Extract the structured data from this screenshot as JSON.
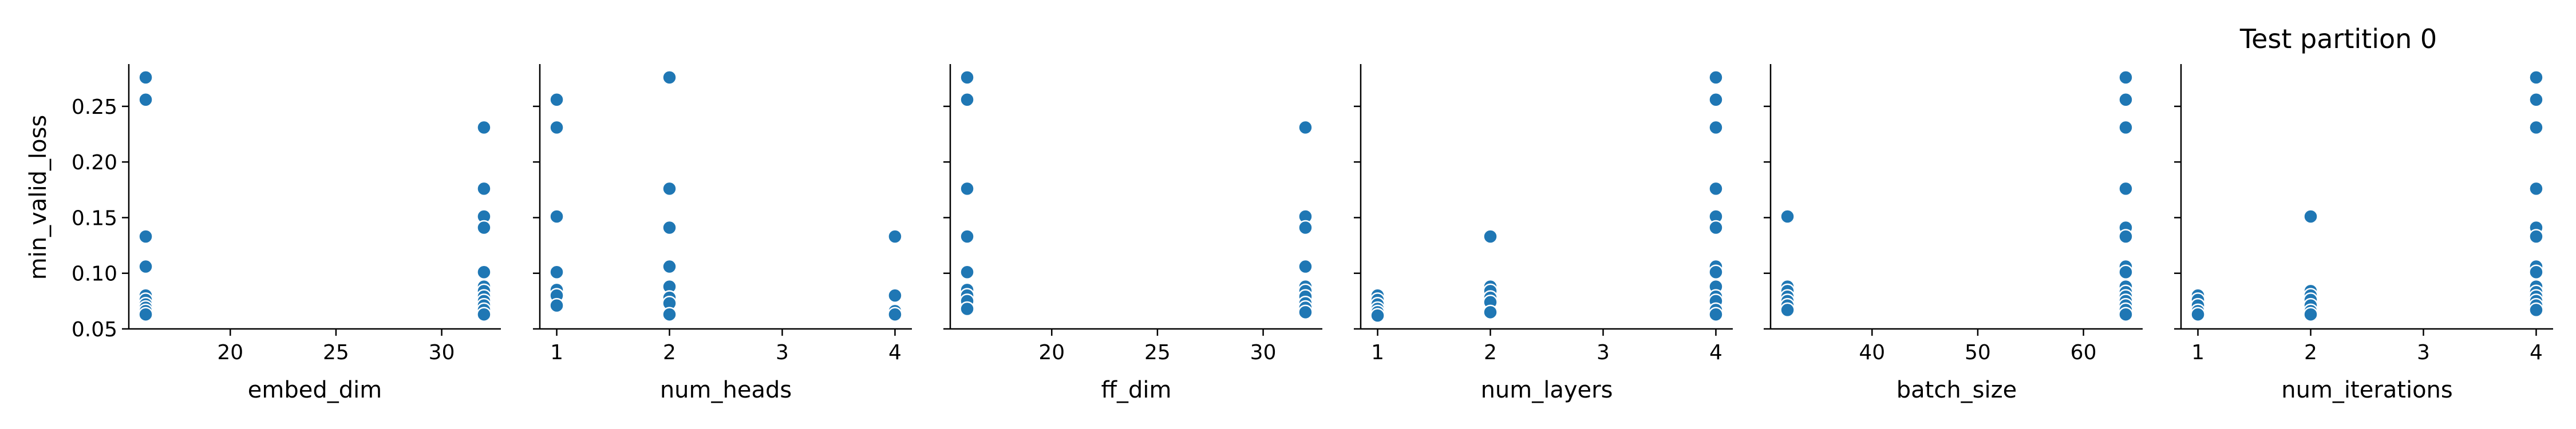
{
  "title": "Test partition 0",
  "ylabel": "min_valid_loss",
  "colors": {
    "point": "#1f77b4",
    "point_edge": "#ffffff",
    "axis": "#000000"
  },
  "chart_data": [
    {
      "type": "scatter",
      "xlabel": "embed_dim",
      "ylabel": "min_valid_loss",
      "xticks": [
        20,
        25,
        30
      ],
      "xlim": [
        15.2,
        32.8
      ],
      "yticks": [
        0.05,
        0.1,
        0.15,
        0.2,
        0.25
      ],
      "ylim": [
        0.05,
        0.288
      ],
      "points": [
        [
          16,
          0.276
        ],
        [
          16,
          0.256
        ],
        [
          16,
          0.133
        ],
        [
          16,
          0.106
        ],
        [
          16,
          0.08
        ],
        [
          16,
          0.076
        ],
        [
          16,
          0.072
        ],
        [
          16,
          0.069
        ],
        [
          16,
          0.066
        ],
        [
          16,
          0.063
        ],
        [
          32,
          0.231
        ],
        [
          32,
          0.176
        ],
        [
          32,
          0.151
        ],
        [
          32,
          0.141
        ],
        [
          32,
          0.101
        ],
        [
          32,
          0.088
        ],
        [
          32,
          0.084
        ],
        [
          32,
          0.079
        ],
        [
          32,
          0.075
        ],
        [
          32,
          0.071
        ],
        [
          32,
          0.067
        ],
        [
          32,
          0.063
        ]
      ]
    },
    {
      "type": "scatter",
      "xlabel": "num_heads",
      "ylabel": "",
      "xticks": [
        1,
        2,
        3,
        4
      ],
      "xlim": [
        0.85,
        4.15
      ],
      "yticks": [
        0.05,
        0.1,
        0.15,
        0.2,
        0.25
      ],
      "ylim": [
        0.05,
        0.288
      ],
      "points": [
        [
          1,
          0.256
        ],
        [
          1,
          0.231
        ],
        [
          1,
          0.151
        ],
        [
          1,
          0.101
        ],
        [
          1,
          0.085
        ],
        [
          1,
          0.08
        ],
        [
          1,
          0.071
        ],
        [
          2,
          0.276
        ],
        [
          2,
          0.176
        ],
        [
          2,
          0.141
        ],
        [
          2,
          0.106
        ],
        [
          2,
          0.088
        ],
        [
          2,
          0.078
        ],
        [
          2,
          0.073
        ],
        [
          2,
          0.063
        ],
        [
          4,
          0.133
        ],
        [
          4,
          0.08
        ],
        [
          4,
          0.066
        ],
        [
          4,
          0.063
        ]
      ]
    },
    {
      "type": "scatter",
      "xlabel": "ff_dim",
      "ylabel": "",
      "xticks": [
        20,
        25,
        30
      ],
      "xlim": [
        15.2,
        32.8
      ],
      "yticks": [
        0.05,
        0.1,
        0.15,
        0.2,
        0.25
      ],
      "ylim": [
        0.05,
        0.288
      ],
      "points": [
        [
          16,
          0.276
        ],
        [
          16,
          0.256
        ],
        [
          16,
          0.176
        ],
        [
          16,
          0.133
        ],
        [
          16,
          0.101
        ],
        [
          16,
          0.085
        ],
        [
          16,
          0.08
        ],
        [
          16,
          0.075
        ],
        [
          16,
          0.068
        ],
        [
          32,
          0.231
        ],
        [
          32,
          0.151
        ],
        [
          32,
          0.141
        ],
        [
          32,
          0.106
        ],
        [
          32,
          0.088
        ],
        [
          32,
          0.084
        ],
        [
          32,
          0.079
        ],
        [
          32,
          0.073
        ],
        [
          32,
          0.069
        ],
        [
          32,
          0.065
        ]
      ]
    },
    {
      "type": "scatter",
      "xlabel": "num_layers",
      "ylabel": "",
      "xticks": [
        1,
        2,
        3,
        4
      ],
      "xlim": [
        0.85,
        4.15
      ],
      "yticks": [
        0.05,
        0.1,
        0.15,
        0.2,
        0.25
      ],
      "ylim": [
        0.05,
        0.288
      ],
      "points": [
        [
          1,
          0.08
        ],
        [
          1,
          0.076
        ],
        [
          1,
          0.072
        ],
        [
          1,
          0.068
        ],
        [
          1,
          0.065
        ],
        [
          1,
          0.062
        ],
        [
          2,
          0.133
        ],
        [
          2,
          0.088
        ],
        [
          2,
          0.084
        ],
        [
          2,
          0.078
        ],
        [
          2,
          0.074
        ],
        [
          2,
          0.065
        ],
        [
          4,
          0.276
        ],
        [
          4,
          0.256
        ],
        [
          4,
          0.231
        ],
        [
          4,
          0.176
        ],
        [
          4,
          0.151
        ],
        [
          4,
          0.141
        ],
        [
          4,
          0.106
        ],
        [
          4,
          0.101
        ],
        [
          4,
          0.088
        ],
        [
          4,
          0.079
        ],
        [
          4,
          0.075
        ],
        [
          4,
          0.067
        ],
        [
          4,
          0.063
        ]
      ]
    },
    {
      "type": "scatter",
      "xlabel": "batch_size",
      "ylabel": "",
      "xticks": [
        40,
        50,
        60
      ],
      "xlim": [
        30.4,
        65.6
      ],
      "yticks": [
        0.05,
        0.1,
        0.15,
        0.2,
        0.25
      ],
      "ylim": [
        0.05,
        0.288
      ],
      "points": [
        [
          32,
          0.151
        ],
        [
          32,
          0.088
        ],
        [
          32,
          0.084
        ],
        [
          32,
          0.079
        ],
        [
          32,
          0.075
        ],
        [
          32,
          0.071
        ],
        [
          32,
          0.067
        ],
        [
          64,
          0.276
        ],
        [
          64,
          0.256
        ],
        [
          64,
          0.231
        ],
        [
          64,
          0.176
        ],
        [
          64,
          0.141
        ],
        [
          64,
          0.133
        ],
        [
          64,
          0.106
        ],
        [
          64,
          0.101
        ],
        [
          64,
          0.088
        ],
        [
          64,
          0.083
        ],
        [
          64,
          0.079
        ],
        [
          64,
          0.075
        ],
        [
          64,
          0.071
        ],
        [
          64,
          0.067
        ],
        [
          64,
          0.063
        ]
      ]
    },
    {
      "type": "scatter",
      "xlabel": "num_iterations",
      "ylabel": "",
      "xticks": [
        1,
        2,
        3,
        4
      ],
      "xlim": [
        0.85,
        4.15
      ],
      "yticks": [
        0.05,
        0.1,
        0.15,
        0.2,
        0.25
      ],
      "ylim": [
        0.05,
        0.288
      ],
      "points": [
        [
          1,
          0.08
        ],
        [
          1,
          0.076
        ],
        [
          1,
          0.071
        ],
        [
          1,
          0.066
        ],
        [
          1,
          0.063
        ],
        [
          2,
          0.151
        ],
        [
          2,
          0.084
        ],
        [
          2,
          0.08
        ],
        [
          2,
          0.076
        ],
        [
          2,
          0.071
        ],
        [
          2,
          0.066
        ],
        [
          2,
          0.063
        ],
        [
          4,
          0.276
        ],
        [
          4,
          0.256
        ],
        [
          4,
          0.231
        ],
        [
          4,
          0.176
        ],
        [
          4,
          0.141
        ],
        [
          4,
          0.133
        ],
        [
          4,
          0.106
        ],
        [
          4,
          0.101
        ],
        [
          4,
          0.088
        ],
        [
          4,
          0.083
        ],
        [
          4,
          0.079
        ],
        [
          4,
          0.075
        ],
        [
          4,
          0.071
        ],
        [
          4,
          0.067
        ]
      ]
    }
  ]
}
